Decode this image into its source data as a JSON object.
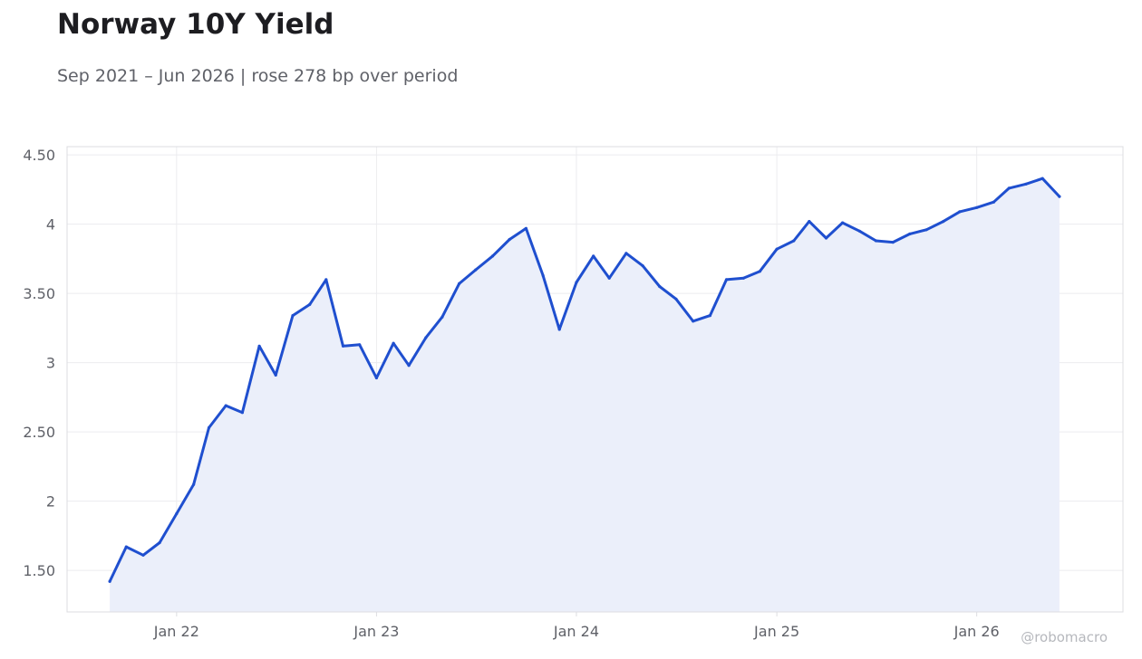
{
  "title": "Norway 10Y Yield",
  "subtitle": "Sep 2021 – Jun 2026 | rose 278 bp over period",
  "watermark": "@robomacro",
  "colors": {
    "line": "#1f4fcf",
    "fill": "#ebeffa",
    "grid": "#ececef",
    "axis": "#dcdde1",
    "tick_text": "#5f6168"
  },
  "chart_data": {
    "type": "area",
    "title": "Norway 10Y Yield",
    "subtitle": "Sep 2021 – Jun 2026 | rose 278 bp over period",
    "xlabel": "",
    "ylabel": "",
    "ylim": [
      1.2,
      4.56
    ],
    "xlim": [
      "2021-06-15",
      "2026-09-25"
    ],
    "yticks": [
      1.5,
      2,
      2.5,
      3,
      3.5,
      4,
      4.5
    ],
    "ytick_labels": [
      "1.50",
      "2",
      "2.50",
      "3",
      "3.50",
      "4",
      "4.50"
    ],
    "xticks": [
      "2022-01-01",
      "2023-01-01",
      "2024-01-01",
      "2025-01-01",
      "2026-01-01"
    ],
    "xtick_labels": [
      "Jan 22",
      "Jan 23",
      "Jan 24",
      "Jan 25",
      "Jan 26"
    ],
    "grid": true,
    "series": [
      {
        "x": [
          "2021-09-01",
          "2021-10-01",
          "2021-11-01",
          "2021-12-01",
          "2022-01-01",
          "2022-02-01",
          "2022-03-01",
          "2022-04-01",
          "2022-05-01",
          "2022-06-01",
          "2022-07-01",
          "2022-08-01",
          "2022-09-01",
          "2022-10-01",
          "2022-11-01",
          "2022-12-01",
          "2023-01-01",
          "2023-02-01",
          "2023-03-01",
          "2023-04-01",
          "2023-05-01",
          "2023-06-01",
          "2023-07-01",
          "2023-08-01",
          "2023-09-01",
          "2023-10-01",
          "2023-11-01",
          "2023-12-01",
          "2024-01-01",
          "2024-02-01",
          "2024-03-01",
          "2024-04-01",
          "2024-05-01",
          "2024-06-01",
          "2024-07-01",
          "2024-08-01",
          "2024-09-01",
          "2024-10-01",
          "2024-11-01",
          "2024-12-01",
          "2025-01-01",
          "2025-02-01",
          "2025-03-01",
          "2025-04-01",
          "2025-05-01",
          "2025-06-01",
          "2025-07-01",
          "2025-08-01",
          "2025-09-01",
          "2025-10-01",
          "2025-11-01",
          "2025-12-01",
          "2026-01-01",
          "2026-02-01",
          "2026-03-01",
          "2026-04-01",
          "2026-05-01",
          "2026-06-01"
        ],
        "values": [
          1.42,
          1.67,
          1.61,
          1.7,
          1.91,
          2.12,
          2.53,
          2.69,
          2.64,
          3.12,
          2.91,
          3.34,
          3.42,
          3.6,
          3.12,
          3.13,
          2.89,
          3.14,
          2.98,
          3.18,
          3.33,
          3.57,
          3.67,
          3.77,
          3.89,
          3.97,
          3.63,
          3.24,
          3.58,
          3.77,
          3.61,
          3.79,
          3.7,
          3.55,
          3.46,
          3.3,
          3.34,
          3.6,
          3.61,
          3.66,
          3.82,
          3.88,
          4.02,
          3.9,
          4.01,
          3.95,
          3.88,
          3.87,
          3.93,
          3.96,
          4.02,
          4.09,
          4.12,
          4.16,
          4.26,
          4.29,
          4.33,
          4.2
        ]
      }
    ]
  }
}
